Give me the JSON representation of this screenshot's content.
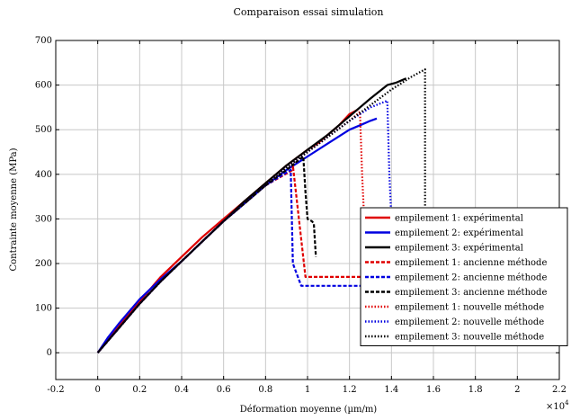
{
  "chart_data": {
    "type": "line",
    "title": "Comparaison essai simulation",
    "xlabel": "Déformation moyenne (µm/m)",
    "ylabel": "Contrainte moyenne (MPa)",
    "x_multiplier_label": "×10",
    "x_multiplier_exp": "4",
    "xlim": [
      -0.2,
      2.2
    ],
    "ylim": [
      -60,
      700
    ],
    "grid": true,
    "legend_position": "right",
    "x_ticks": [
      -0.2,
      0,
      0.2,
      0.4,
      0.6,
      0.8,
      1,
      1.2,
      1.4,
      1.6,
      1.8,
      2,
      2.2
    ],
    "x_tick_labels": [
      "-0.2",
      "0",
      "0.2",
      "0.4",
      "0.6",
      "0.8",
      "1",
      "1.2",
      "1.4",
      "1.6",
      "1.8",
      "2",
      "2.2"
    ],
    "y_ticks": [
      0,
      100,
      200,
      300,
      400,
      500,
      600,
      700
    ],
    "y_tick_labels": [
      "0",
      "100",
      "200",
      "300",
      "400",
      "500",
      "600",
      "700"
    ],
    "series": [
      {
        "name": "empilement 1: expérimental",
        "color": "#e00000",
        "style": "solid",
        "x": [
          0,
          0.05,
          0.1,
          0.2,
          0.3,
          0.4,
          0.5,
          0.6,
          0.7,
          0.8,
          0.9,
          1.0,
          1.05,
          1.1,
          1.15,
          1.2,
          1.24
        ],
        "y": [
          0,
          30,
          60,
          115,
          170,
          215,
          260,
          300,
          340,
          380,
          420,
          455,
          470,
          490,
          510,
          535,
          545
        ]
      },
      {
        "name": "empilement 2: expérimental",
        "color": "#0000e0",
        "style": "solid",
        "x": [
          0,
          0.05,
          0.1,
          0.2,
          0.3,
          0.4,
          0.5,
          0.6,
          0.7,
          0.8,
          0.9,
          1.0,
          1.1,
          1.2,
          1.26,
          1.3,
          1.33
        ],
        "y": [
          0,
          35,
          65,
          120,
          165,
          205,
          250,
          295,
          335,
          375,
          410,
          440,
          470,
          500,
          512,
          520,
          525
        ]
      },
      {
        "name": "empilement 3: expérimental",
        "color": "#000000",
        "style": "solid",
        "x": [
          0,
          0.1,
          0.2,
          0.3,
          0.4,
          0.5,
          0.6,
          0.7,
          0.8,
          0.9,
          1.0,
          1.1,
          1.2,
          1.3,
          1.38,
          1.42,
          1.47
        ],
        "y": [
          0,
          55,
          110,
          160,
          205,
          250,
          295,
          340,
          380,
          420,
          455,
          490,
          530,
          570,
          600,
          605,
          615
        ]
      },
      {
        "name": "empilement 1: ancienne méthode",
        "color": "#e00000",
        "style": "dashed",
        "x": [
          0,
          0.1,
          0.2,
          0.3,
          0.4,
          0.5,
          0.6,
          0.7,
          0.8,
          0.93,
          0.93,
          0.99,
          1.0,
          1.1,
          1.2,
          1.3,
          1.4
        ],
        "y": [
          0,
          55,
          110,
          160,
          205,
          250,
          295,
          335,
          375,
          410,
          420,
          170,
          170,
          170,
          170,
          170,
          170
        ]
      },
      {
        "name": "empilement 2: ancienne méthode",
        "color": "#0000e0",
        "style": "dashed",
        "x": [
          0,
          0.1,
          0.2,
          0.3,
          0.4,
          0.5,
          0.6,
          0.7,
          0.8,
          0.92,
          0.93,
          0.97,
          1.0,
          1.1,
          1.2,
          1.3,
          1.4
        ],
        "y": [
          0,
          55,
          110,
          160,
          205,
          250,
          295,
          335,
          375,
          410,
          200,
          150,
          150,
          150,
          150,
          150,
          150
        ]
      },
      {
        "name": "empilement 3: ancienne méthode",
        "color": "#000000",
        "style": "dashed",
        "x": [
          0,
          0.1,
          0.2,
          0.3,
          0.4,
          0.5,
          0.6,
          0.7,
          0.8,
          0.9,
          0.98,
          0.99,
          1.0,
          1.02,
          1.03,
          1.04
        ],
        "y": [
          0,
          55,
          110,
          160,
          205,
          250,
          295,
          335,
          375,
          410,
          440,
          360,
          300,
          295,
          290,
          215
        ]
      },
      {
        "name": "empilement 1: nouvelle méthode",
        "color": "#e00000",
        "style": "dotted",
        "x": [
          0,
          0.1,
          0.2,
          0.3,
          0.4,
          0.5,
          0.6,
          0.7,
          0.8,
          0.9,
          1.0,
          1.1,
          1.2,
          1.25,
          1.26,
          1.27
        ],
        "y": [
          0,
          55,
          110,
          160,
          205,
          250,
          295,
          335,
          375,
          415,
          450,
          485,
          520,
          540,
          400,
          300
        ]
      },
      {
        "name": "empilement 2: nouvelle méthode",
        "color": "#0000e0",
        "style": "dotted",
        "x": [
          0,
          0.1,
          0.2,
          0.3,
          0.4,
          0.5,
          0.6,
          0.7,
          0.8,
          0.9,
          1.0,
          1.1,
          1.2,
          1.3,
          1.38,
          1.39,
          1.4
        ],
        "y": [
          0,
          55,
          110,
          160,
          205,
          250,
          295,
          335,
          375,
          415,
          450,
          485,
          520,
          550,
          565,
          400,
          300
        ]
      },
      {
        "name": "empilement 3: nouvelle méthode",
        "color": "#000000",
        "style": "dotted",
        "x": [
          0,
          0.1,
          0.2,
          0.3,
          0.4,
          0.5,
          0.6,
          0.7,
          0.8,
          0.9,
          1.0,
          1.1,
          1.2,
          1.3,
          1.4,
          1.5,
          1.56,
          1.56,
          1.56
        ],
        "y": [
          0,
          55,
          110,
          160,
          205,
          250,
          295,
          335,
          375,
          415,
          450,
          485,
          520,
          555,
          590,
          620,
          635,
          400,
          300
        ]
      }
    ]
  }
}
